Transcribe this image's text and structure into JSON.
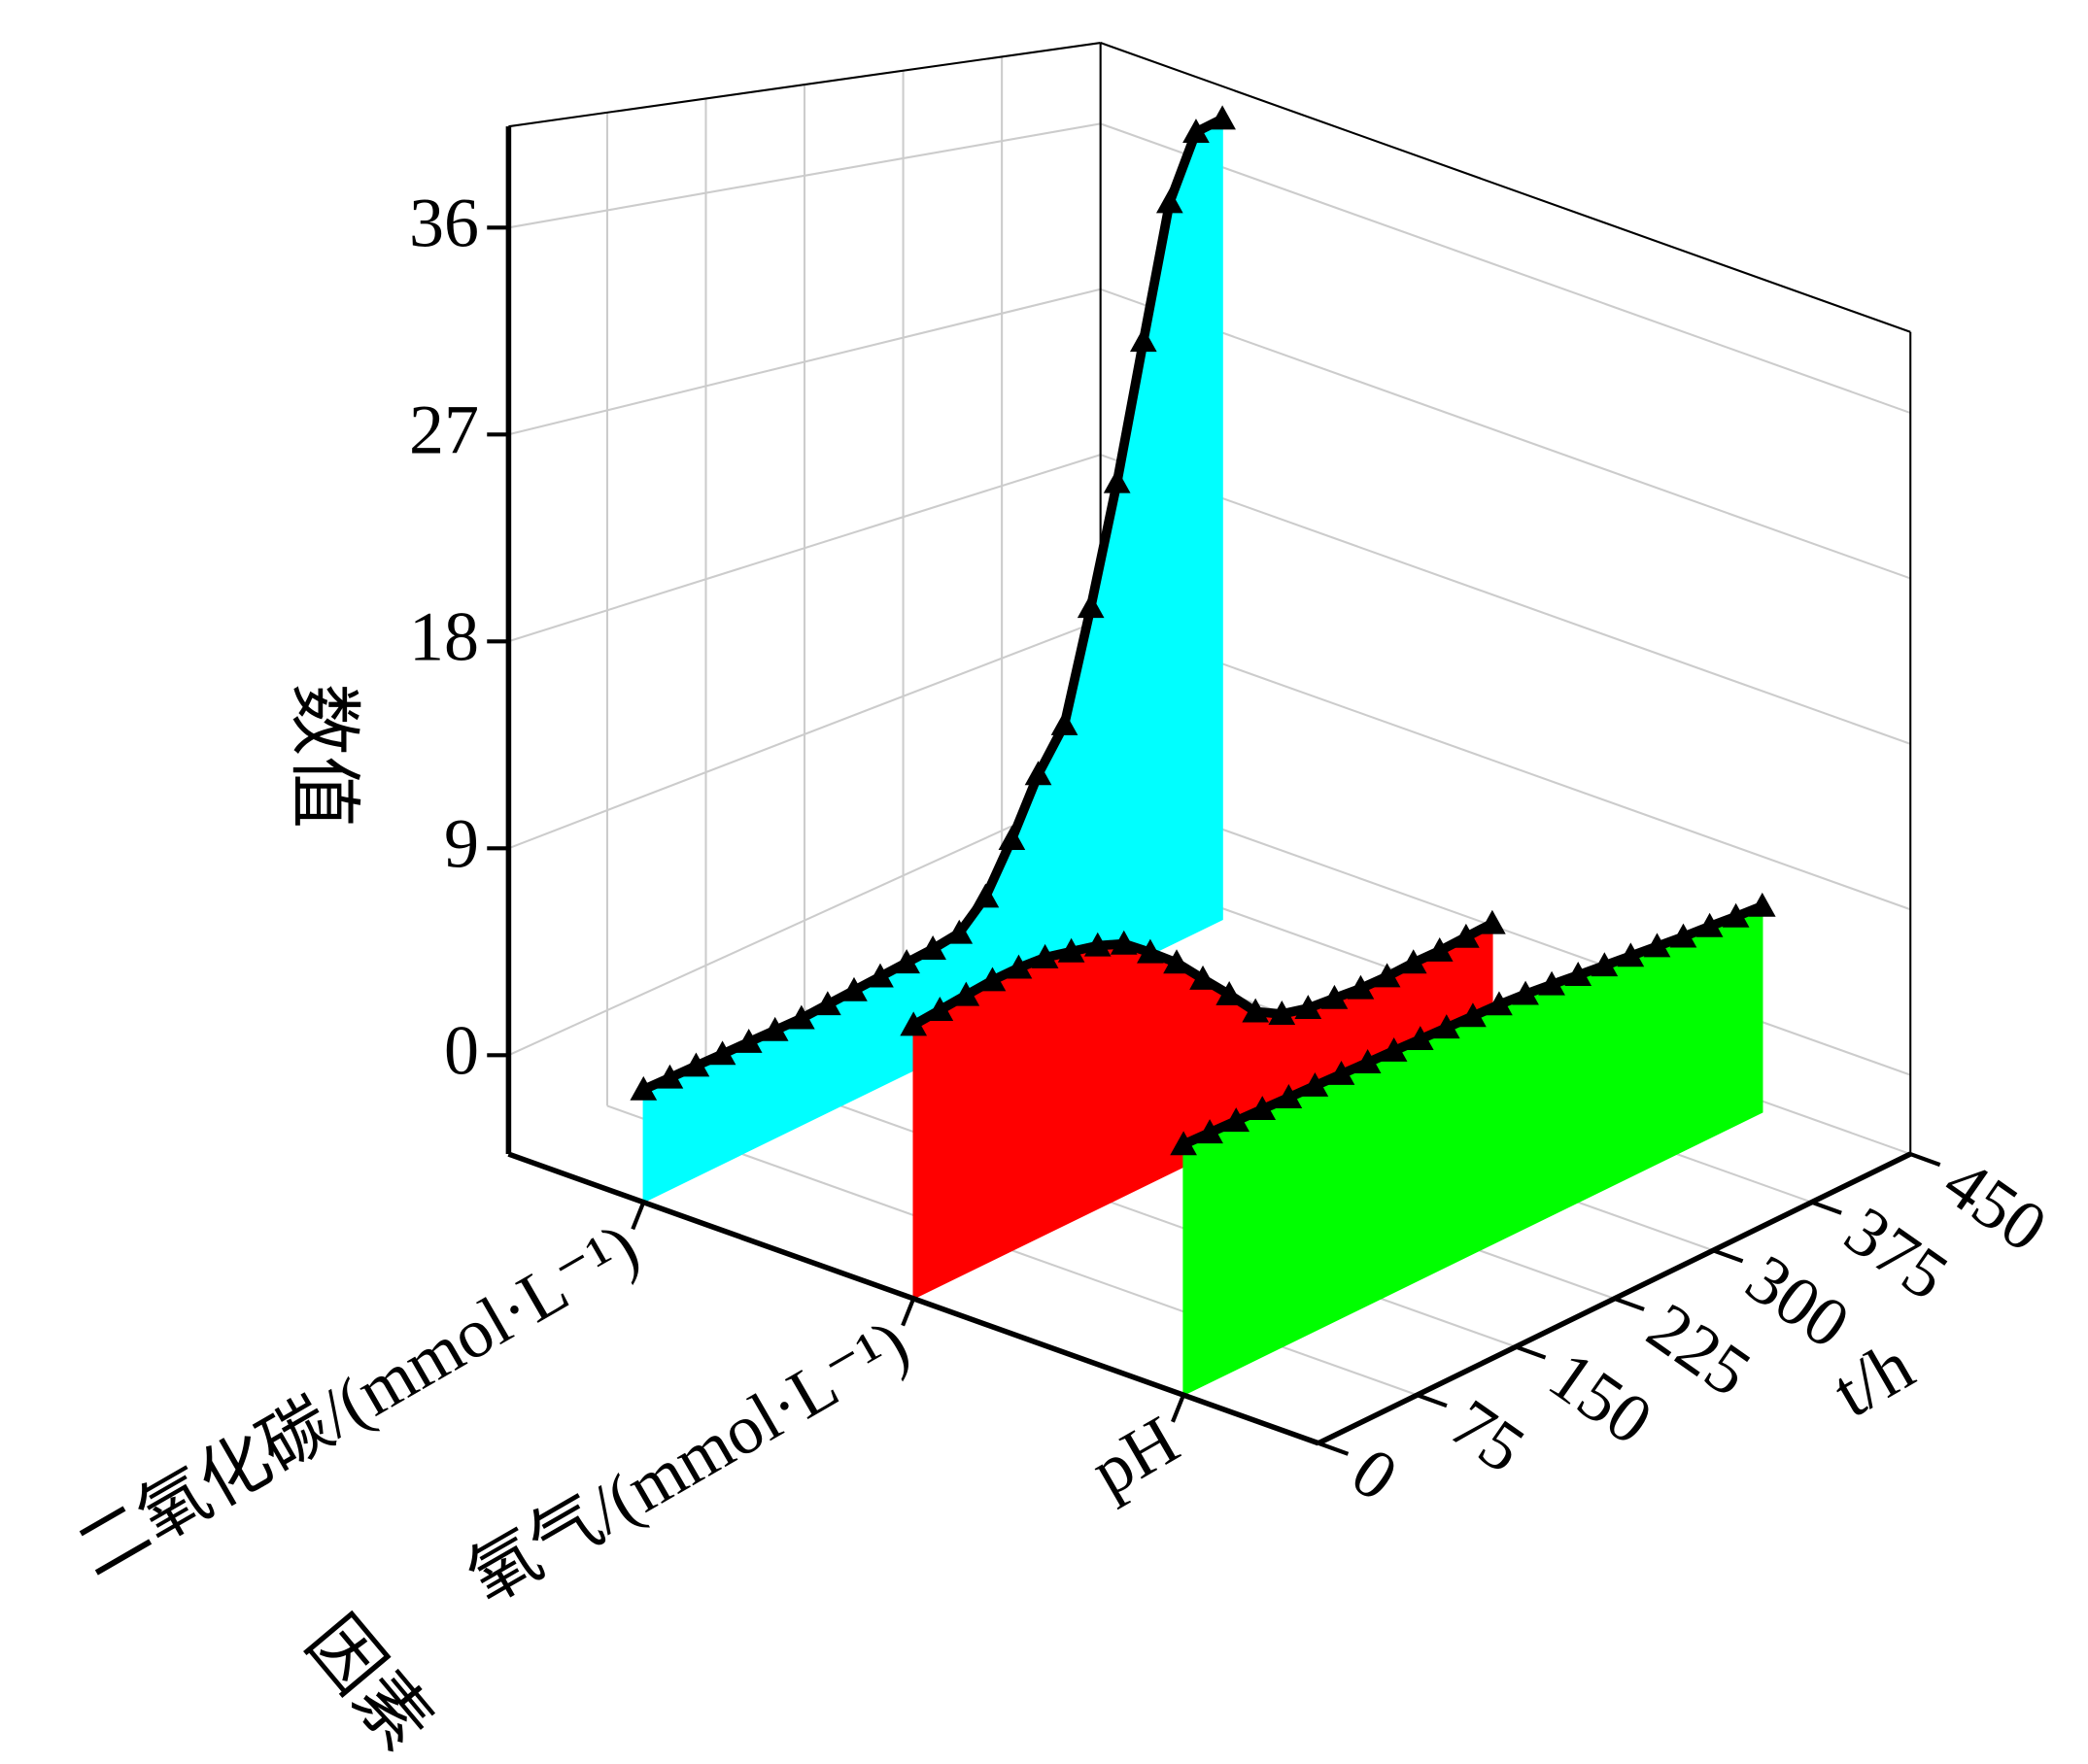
{
  "chart_data": {
    "type": "waterfall3d",
    "xlabel": "t/h",
    "ylabel": "因素",
    "zlabel": "数值",
    "x": [
      0,
      20,
      40,
      60,
      80,
      100,
      120,
      140,
      160,
      180,
      200,
      220,
      240,
      260,
      280,
      300,
      320,
      340,
      360,
      380,
      400,
      420,
      440
    ],
    "categories": [
      "二氧化碳/(mmol·L⁻¹)",
      "氧气/(mmol·L⁻¹)",
      "pH"
    ],
    "series": [
      {
        "color": "#00ffff",
        "values": [
          0.6,
          0.6,
          0.6,
          0.6,
          0.6,
          0.6,
          0.6,
          0.7,
          0.8,
          0.9,
          1.0,
          1.1,
          1.3,
          2.5,
          4.8,
          7.5,
          9.5,
          15,
          21,
          28,
          35,
          38.5,
          39
        ]
      },
      {
        "color": "#ff0000",
        "values": [
          7.6,
          7.8,
          8.0,
          8.2,
          8.3,
          8.3,
          8.1,
          7.9,
          7.5,
          6.6,
          5.6,
          4.3,
          3.0,
          1.6,
          0.9,
          0.6,
          0.5,
          0.4,
          0.4,
          0.5,
          0.5,
          0.6,
          0.7
        ]
      },
      {
        "color": "#00ff00",
        "values": [
          6.6,
          6.65,
          6.7,
          6.75,
          6.8,
          6.85,
          6.9,
          6.95,
          7.0,
          7.05,
          7.1,
          7.15,
          7.2,
          7.2,
          7.15,
          7.1,
          7.05,
          7.0,
          6.95,
          6.9,
          6.9,
          6.85,
          6.85
        ]
      }
    ],
    "marker": "triangle",
    "marker_color": "#000000",
    "xlim": [
      0,
      450
    ],
    "xticks": [
      0,
      75,
      150,
      225,
      300,
      375,
      450
    ],
    "zlim": [
      -4.3,
      40.4
    ],
    "zticks": [
      0,
      9,
      18,
      27,
      36
    ],
    "grid": true
  }
}
